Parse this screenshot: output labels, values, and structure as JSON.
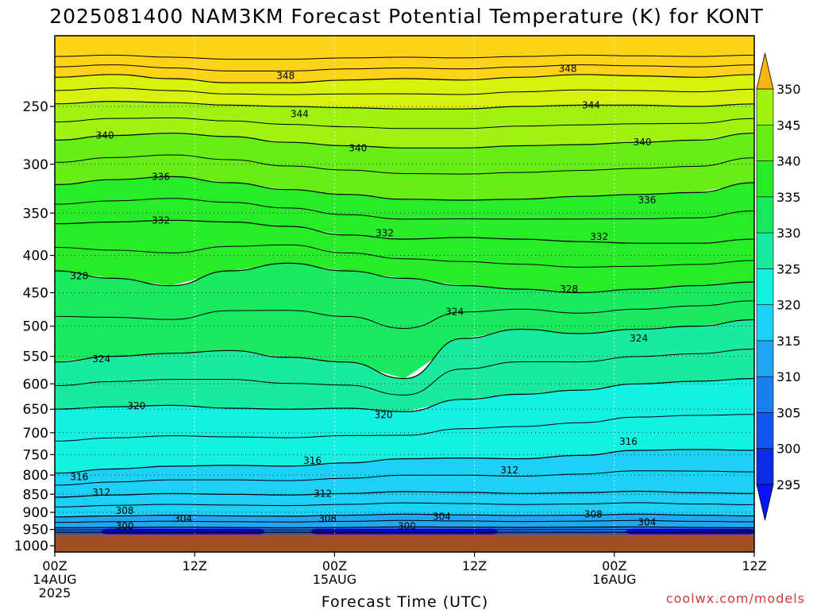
{
  "header": {
    "title": "2025081400 NAM3KM Forecast Potential Temperature (K) for KONT"
  },
  "footer": {
    "xlabel": "Forecast Time (UTC)",
    "credit": "coolwx.com/models"
  },
  "chart_data": {
    "type": "heatmap",
    "title": "2025081400 NAM3KM Forecast Potential Temperature (K) for KONT",
    "xlabel": "Forecast Time (UTC)",
    "ylabel": "",
    "x_ticks": [
      {
        "hour": 0,
        "line1": "00Z",
        "line2": "14AUG",
        "line3": "2025"
      },
      {
        "hour": 12,
        "line1": "12Z",
        "line2": "",
        "line3": ""
      },
      {
        "hour": 24,
        "line1": "00Z",
        "line2": "15AUG",
        "line3": ""
      },
      {
        "hour": 36,
        "line1": "12Z",
        "line2": "",
        "line3": ""
      },
      {
        "hour": 48,
        "line1": "00Z",
        "line2": "16AUG",
        "line3": ""
      },
      {
        "hour": 60,
        "line1": "12Z",
        "line2": "",
        "line3": ""
      }
    ],
    "xlim": [
      0,
      60
    ],
    "y_axis_scale": "log-pressure",
    "y_ticks": [
      250,
      300,
      350,
      400,
      450,
      500,
      550,
      600,
      650,
      700,
      750,
      800,
      850,
      900,
      950,
      1000
    ],
    "ylim_hpa": [
      200,
      1020
    ],
    "surface_pressure_hpa": 965,
    "grid": true,
    "colorbar": {
      "position": "right",
      "levels": [
        295,
        300,
        305,
        310,
        315,
        320,
        325,
        330,
        335,
        340,
        345,
        350
      ],
      "colors": [
        "#0a14ff",
        "#0b2be6",
        "#1256ee",
        "#1a7df0",
        "#21a6f2",
        "#1dd0f5",
        "#14f0e2",
        "#1ae9a0",
        "#19e95f",
        "#28ec28",
        "#66ee16",
        "#9ff212",
        "#d6f20e",
        "#fff200",
        "#ffd21a",
        "#f5b50d"
      ],
      "extend": "both"
    },
    "series": [
      {
        "theta": 300,
        "pressure_hpa": [
          958,
          958,
          958,
          958,
          958,
          958,
          958,
          958,
          958,
          958,
          958,
          958,
          958
        ]
      },
      {
        "theta": 304,
        "pressure_hpa": [
          945,
          944,
          943,
          944,
          945,
          944,
          942,
          943,
          944,
          943,
          942,
          944,
          945
        ]
      },
      {
        "theta": 308,
        "pressure_hpa": [
          913,
          910,
          908,
          910,
          911,
          908,
          905,
          907,
          909,
          908,
          905,
          908,
          910
        ]
      },
      {
        "theta": 312,
        "pressure_hpa": [
          858,
          852,
          848,
          850,
          852,
          848,
          843,
          845,
          848,
          846,
          842,
          846,
          848
        ]
      },
      {
        "theta": 316,
        "pressure_hpa": [
          795,
          785,
          778,
          776,
          778,
          770,
          760,
          758,
          760,
          752,
          740,
          738,
          740
        ]
      },
      {
        "theta": 320,
        "pressure_hpa": [
          650,
          645,
          642,
          648,
          650,
          648,
          655,
          630,
          620,
          612,
          600,
          595,
          590
        ]
      },
      {
        "theta": 324,
        "pressure_hpa": [
          560,
          550,
          545,
          540,
          552,
          560,
          590,
          520,
          505,
          512,
          505,
          500,
          490
        ]
      },
      {
        "theta": 328,
        "pressure_hpa": [
          420,
          430,
          440,
          420,
          410,
          420,
          430,
          440,
          445,
          450,
          445,
          440,
          435
        ]
      },
      {
        "theta": 332,
        "pressure_hpa": [
          362,
          360,
          358,
          360,
          365,
          375,
          380,
          378,
          380,
          383,
          385,
          385,
          380
        ]
      },
      {
        "theta": 336,
        "pressure_hpa": [
          320,
          315,
          312,
          318,
          325,
          330,
          335,
          336,
          335,
          332,
          330,
          328,
          318
        ]
      },
      {
        "theta": 340,
        "pressure_hpa": [
          278,
          274,
          272,
          275,
          280,
          283,
          285,
          285,
          283,
          282,
          280,
          278,
          272
        ]
      },
      {
        "theta": 344,
        "pressure_hpa": [
          248,
          246,
          247,
          249,
          250,
          251,
          252,
          252,
          250,
          249,
          249,
          250,
          248
        ]
      },
      {
        "theta": 348,
        "pressure_hpa": [
          228,
          226,
          229,
          232,
          232,
          230,
          229,
          230,
          228,
          226,
          227,
          228,
          226
        ]
      }
    ],
    "series_hours": [
      0,
      5,
      10,
      15,
      20,
      25,
      30,
      35,
      40,
      45,
      50,
      55,
      60
    ],
    "contour_labels": [
      {
        "text": "348",
        "hour": 19.8,
        "pressure_hpa": 227
      },
      {
        "text": "348",
        "hour": 44,
        "pressure_hpa": 222
      },
      {
        "text": "344",
        "hour": 21,
        "pressure_hpa": 256
      },
      {
        "text": "344",
        "hour": 46,
        "pressure_hpa": 249
      },
      {
        "text": "340",
        "hour": 4.3,
        "pressure_hpa": 274
      },
      {
        "text": "340",
        "hour": 26,
        "pressure_hpa": 285
      },
      {
        "text": "340",
        "hour": 50.4,
        "pressure_hpa": 280
      },
      {
        "text": "336",
        "hour": 9.1,
        "pressure_hpa": 312
      },
      {
        "text": "336",
        "hour": 50.8,
        "pressure_hpa": 336
      },
      {
        "text": "332",
        "hour": 9.1,
        "pressure_hpa": 358
      },
      {
        "text": "332",
        "hour": 28.3,
        "pressure_hpa": 373
      },
      {
        "text": "332",
        "hour": 46.7,
        "pressure_hpa": 377
      },
      {
        "text": "328",
        "hour": 2.1,
        "pressure_hpa": 427
      },
      {
        "text": "328",
        "hour": 44.1,
        "pressure_hpa": 445
      },
      {
        "text": "324",
        "hour": 34.3,
        "pressure_hpa": 478
      },
      {
        "text": "324",
        "hour": 50.1,
        "pressure_hpa": 520
      },
      {
        "text": "324",
        "hour": 4,
        "pressure_hpa": 555
      },
      {
        "text": "320",
        "hour": 7,
        "pressure_hpa": 643
      },
      {
        "text": "320",
        "hour": 28.2,
        "pressure_hpa": 662
      },
      {
        "text": "316",
        "hour": 49.2,
        "pressure_hpa": 720
      },
      {
        "text": "316",
        "hour": 22.1,
        "pressure_hpa": 765
      },
      {
        "text": "316",
        "hour": 2.1,
        "pressure_hpa": 805
      },
      {
        "text": "312",
        "hour": 39,
        "pressure_hpa": 788
      },
      {
        "text": "312",
        "hour": 4,
        "pressure_hpa": 845
      },
      {
        "text": "312",
        "hour": 23,
        "pressure_hpa": 848
      },
      {
        "text": "308",
        "hour": 6,
        "pressure_hpa": 895
      },
      {
        "text": "308",
        "hour": 23.4,
        "pressure_hpa": 918
      },
      {
        "text": "308",
        "hour": 46.2,
        "pressure_hpa": 905
      },
      {
        "text": "304",
        "hour": 11,
        "pressure_hpa": 918
      },
      {
        "text": "304",
        "hour": 33.2,
        "pressure_hpa": 912
      },
      {
        "text": "304",
        "hour": 50.8,
        "pressure_hpa": 928
      },
      {
        "text": "300",
        "hour": 6,
        "pressure_hpa": 940
      },
      {
        "text": "300",
        "hour": 30.2,
        "pressure_hpa": 940
      }
    ]
  }
}
